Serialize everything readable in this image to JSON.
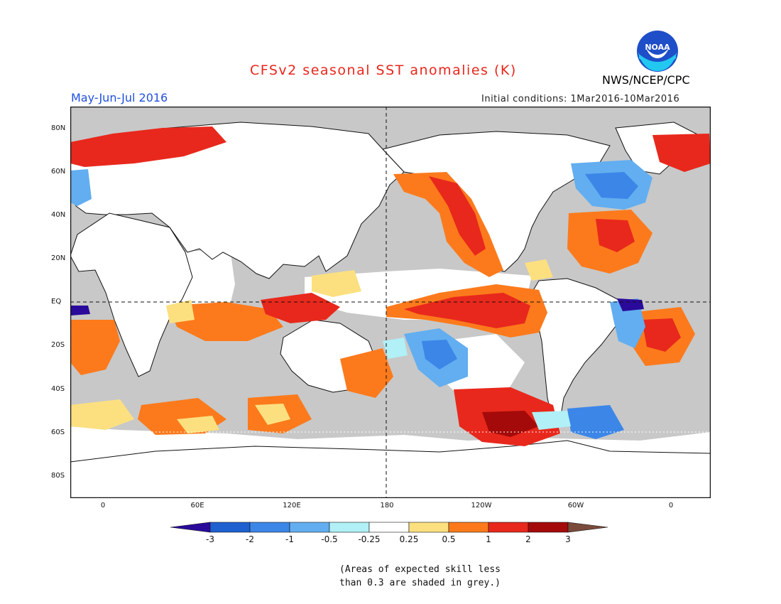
{
  "header": {
    "title": "CFSv2 seasonal SST anomalies (K)",
    "season": "May-Jun-Jul 2016",
    "initial_conditions": "Initial conditions: 1Mar2016-10Mar2016",
    "agency": "NWS/NCEP/CPC",
    "logo_text": "NOAA"
  },
  "map": {
    "lat_labels": [
      "80N",
      "60N",
      "40N",
      "20N",
      "EQ",
      "20S",
      "40S",
      "60S",
      "80S"
    ],
    "lon_labels": [
      "0",
      "60E",
      "120E",
      "180",
      "120W",
      "60W",
      "0"
    ],
    "land_color": "#ffffff",
    "low_skill_color": "#c8c8c8"
  },
  "colorbar": {
    "ticks": [
      "-3",
      "-2",
      "-1",
      "-0.5",
      "-0.25",
      "0.25",
      "0.5",
      "1",
      "2",
      "3"
    ],
    "colors": [
      "#2a0a9a",
      "#1e60d0",
      "#3c86e8",
      "#62aef0",
      "#b0f0f6",
      "#ffffff",
      "#fce080",
      "#fc7a1c",
      "#e8281c",
      "#a40a0a",
      "#7a4a3a"
    ]
  },
  "footnote": {
    "line1": "(Areas of expected skill less",
    "line2": "than 0.3 are shaded in grey.)"
  }
}
